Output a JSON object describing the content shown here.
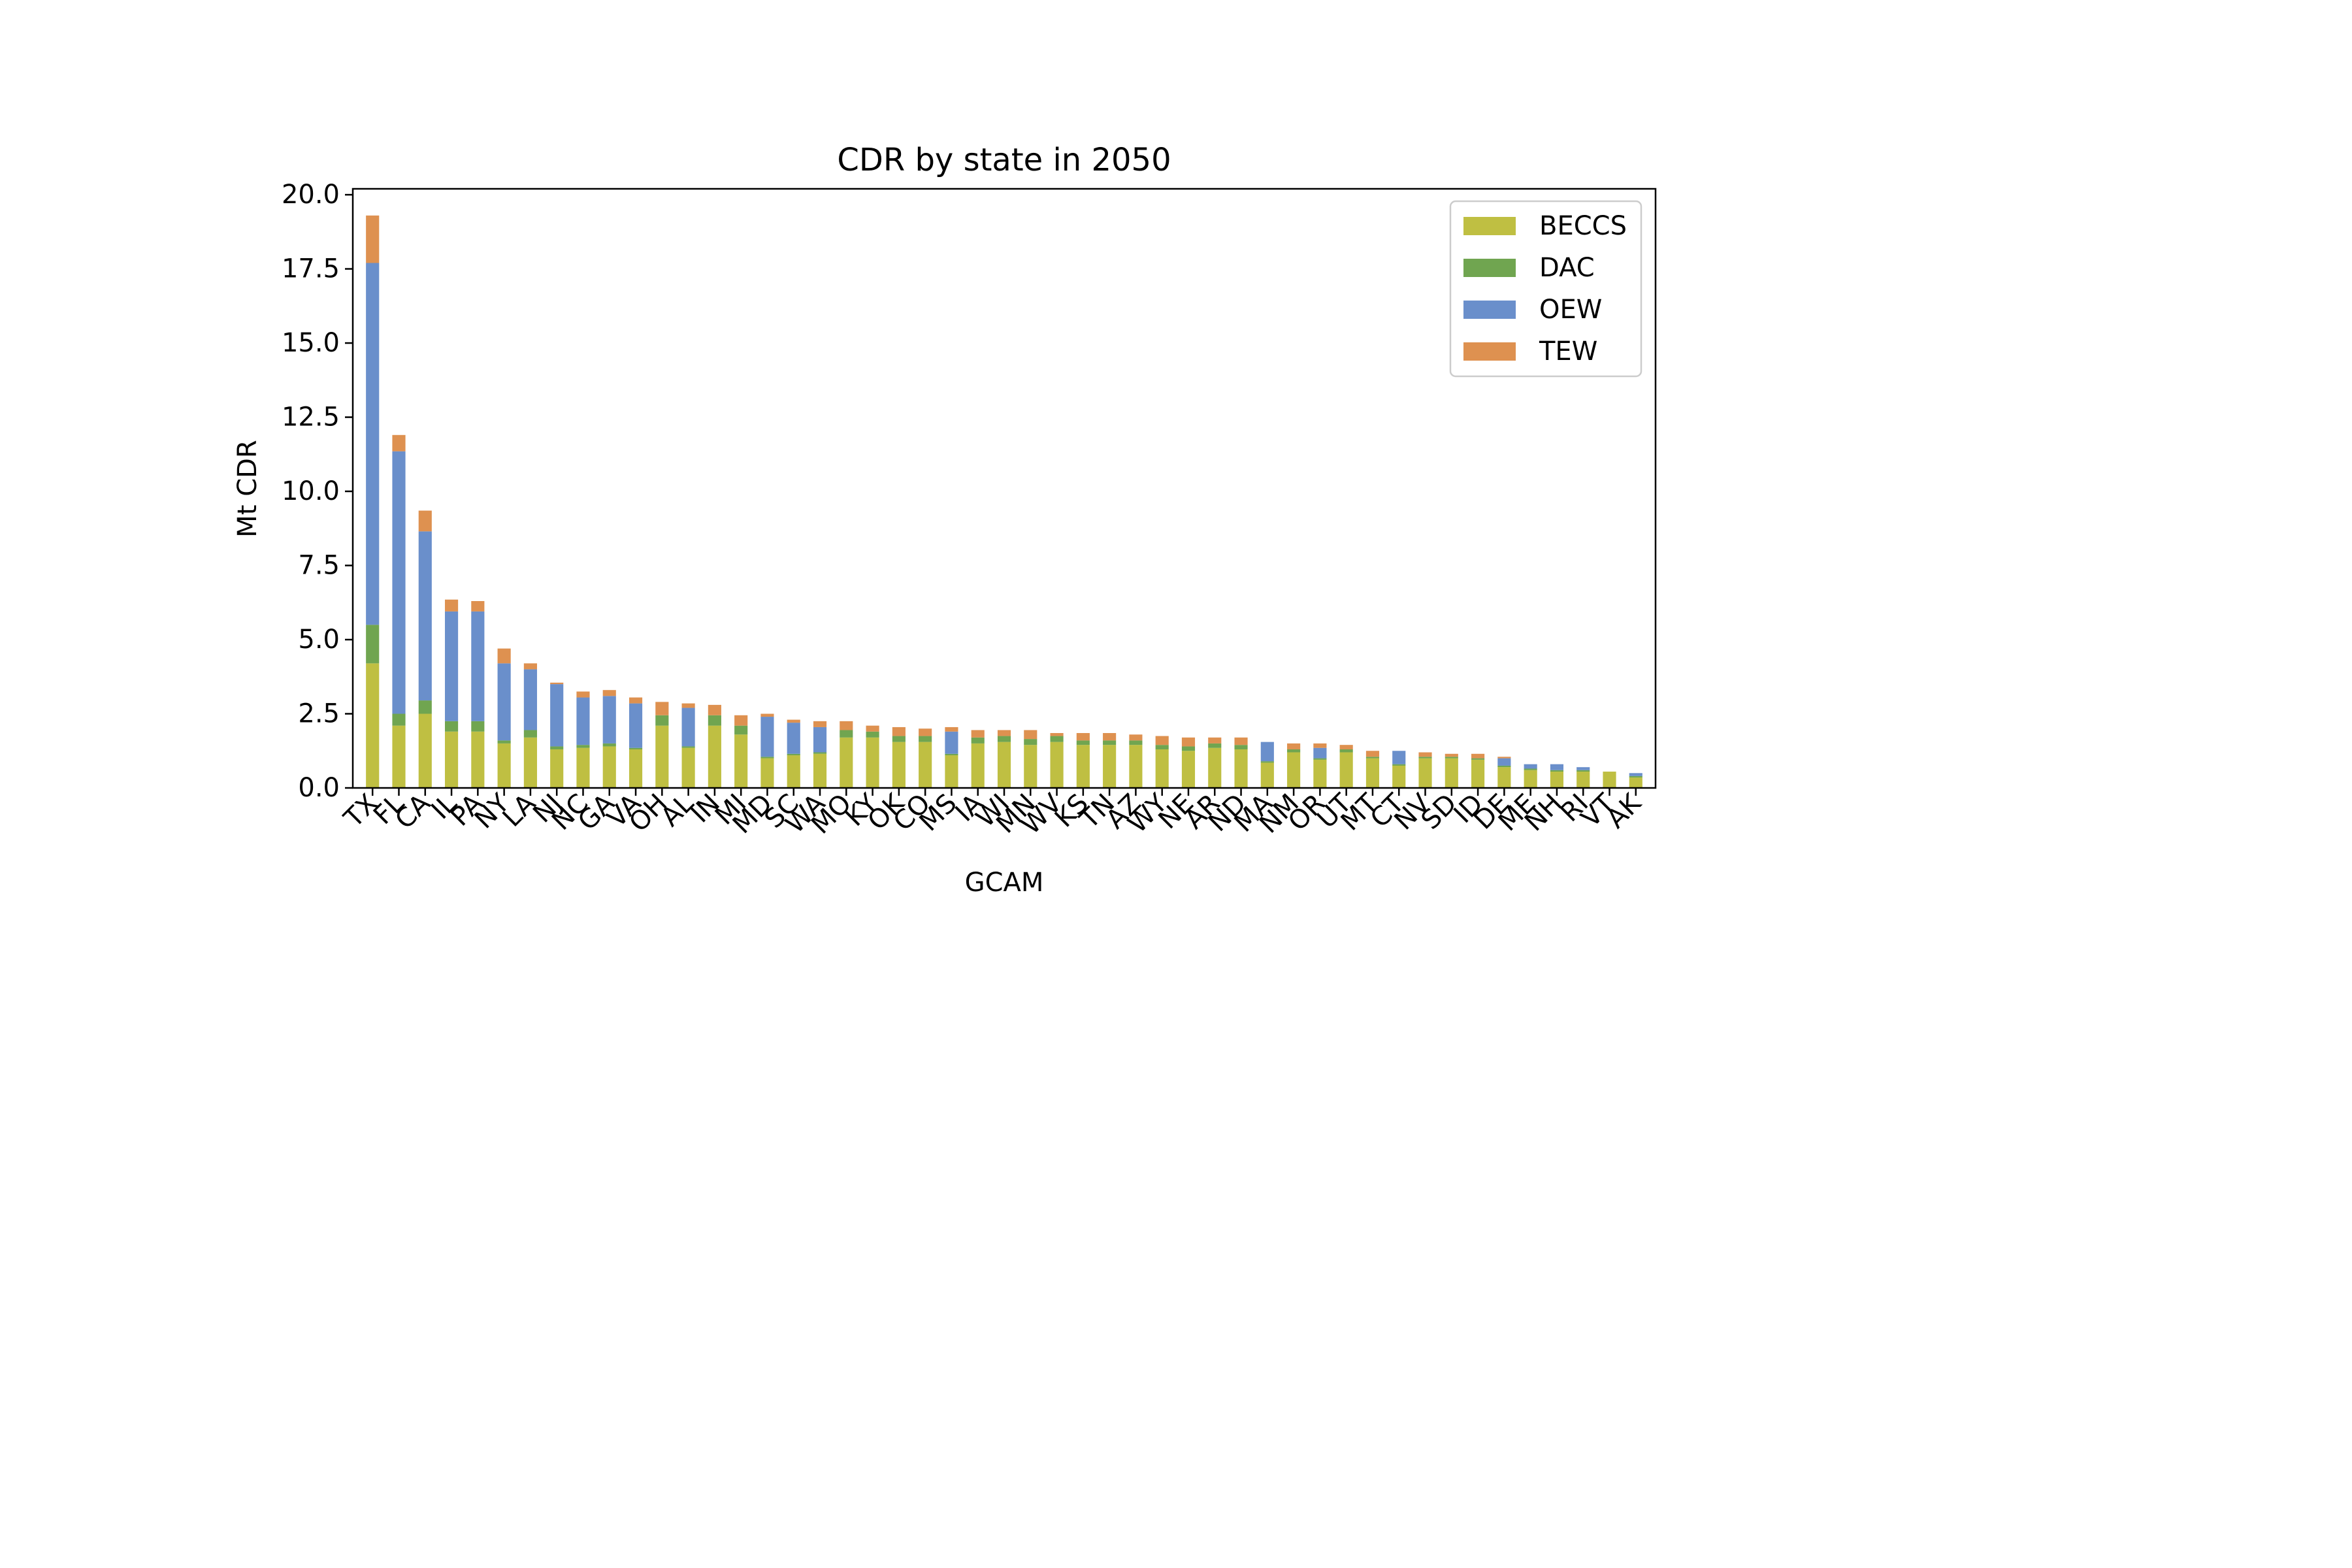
{
  "chart_data": {
    "type": "bar",
    "stacked": true,
    "title": "CDR by state in 2050",
    "xlabel": "GCAM",
    "ylabel": "Mt CDR",
    "ylim": [
      0,
      20.2
    ],
    "yticks": [
      "0.0",
      "2.5",
      "5.0",
      "7.5",
      "10.0",
      "12.5",
      "15.0",
      "17.5",
      "20.0"
    ],
    "grid": false,
    "legend_position": "top-right",
    "categories": [
      "TX",
      "FL",
      "CA",
      "IL",
      "PA",
      "NY",
      "LA",
      "NJ",
      "NC",
      "GA",
      "VA",
      "OH",
      "AL",
      "IN",
      "MI",
      "MD",
      "SC",
      "WA",
      "MO",
      "KY",
      "OK",
      "CO",
      "MS",
      "IA",
      "WI",
      "MN",
      "WV",
      "KS",
      "TN",
      "AZ",
      "WY",
      "NE",
      "AR",
      "ND",
      "MA",
      "NM",
      "OR",
      "UT",
      "MT",
      "CT",
      "NV",
      "SD",
      "ID",
      "DE",
      "ME",
      "NH",
      "RI",
      "VT",
      "AK"
    ],
    "series": [
      {
        "name": "BECCS",
        "color": "#bfbf42",
        "values": [
          4.2,
          2.1,
          2.5,
          1.9,
          1.9,
          1.5,
          1.7,
          1.3,
          1.35,
          1.4,
          1.3,
          2.1,
          1.35,
          2.1,
          1.8,
          1.0,
          1.1,
          1.15,
          1.7,
          1.7,
          1.55,
          1.55,
          1.1,
          1.5,
          1.55,
          1.45,
          1.55,
          1.45,
          1.45,
          1.45,
          1.3,
          1.25,
          1.35,
          1.3,
          0.85,
          1.2,
          0.95,
          1.2,
          1.0,
          0.75,
          1.0,
          1.0,
          0.95,
          0.7,
          0.6,
          0.55,
          0.55,
          0.55,
          0.35
        ]
      },
      {
        "name": "DAC",
        "color": "#70a550",
        "values": [
          1.3,
          0.4,
          0.45,
          0.35,
          0.35,
          0.1,
          0.25,
          0.1,
          0.1,
          0.1,
          0.05,
          0.35,
          0.05,
          0.35,
          0.3,
          0.05,
          0.05,
          0.05,
          0.25,
          0.2,
          0.2,
          0.2,
          0.05,
          0.2,
          0.2,
          0.2,
          0.2,
          0.15,
          0.15,
          0.15,
          0.15,
          0.15,
          0.15,
          0.15,
          0.05,
          0.1,
          0.05,
          0.1,
          0.05,
          0.05,
          0.05,
          0.05,
          0.05,
          0.05,
          0.05,
          0.05,
          0.05,
          0.0,
          0.05
        ]
      },
      {
        "name": "OEW",
        "color": "#6a8fcb",
        "values": [
          12.2,
          8.85,
          5.7,
          3.7,
          3.7,
          2.6,
          2.05,
          2.1,
          1.6,
          1.6,
          1.5,
          0.0,
          1.3,
          0.0,
          0.0,
          1.35,
          1.05,
          0.85,
          0.0,
          0.0,
          0.0,
          0.0,
          0.75,
          0.0,
          0.0,
          0.0,
          0.0,
          0.0,
          0.0,
          0.0,
          0.0,
          0.0,
          0.0,
          0.0,
          0.65,
          0.0,
          0.35,
          0.0,
          0.0,
          0.45,
          0.0,
          0.0,
          0.0,
          0.25,
          0.15,
          0.2,
          0.1,
          0.0,
          0.1
        ]
      },
      {
        "name": "TEW",
        "color": "#de9150",
        "values": [
          1.6,
          0.55,
          0.7,
          0.4,
          0.35,
          0.5,
          0.2,
          0.05,
          0.2,
          0.2,
          0.2,
          0.45,
          0.15,
          0.35,
          0.35,
          0.1,
          0.1,
          0.2,
          0.3,
          0.2,
          0.3,
          0.25,
          0.15,
          0.25,
          0.2,
          0.3,
          0.1,
          0.25,
          0.25,
          0.2,
          0.3,
          0.3,
          0.2,
          0.25,
          0.0,
          0.2,
          0.15,
          0.15,
          0.2,
          0.0,
          0.15,
          0.1,
          0.15,
          0.05,
          0.0,
          0.0,
          0.0,
          0.0,
          0.0
        ]
      }
    ]
  }
}
